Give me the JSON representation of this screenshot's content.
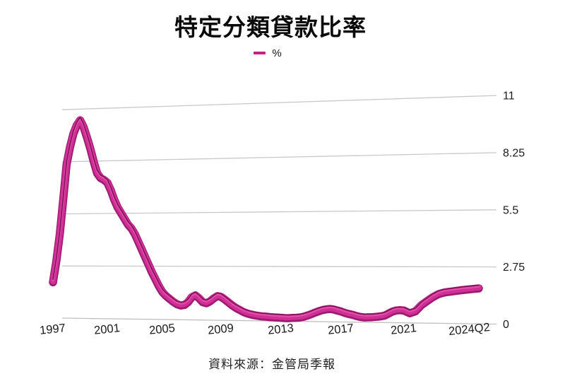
{
  "title": "特定分類貸款比率",
  "legend": {
    "label": "%"
  },
  "source": "資料來源：金管局季報",
  "colors": {
    "background": "#ffffff",
    "gridline": "#c9c9c9",
    "baseline": "#c2c2c2",
    "text": "#1b1b1b",
    "legend_swatch": "#c42287",
    "ribbon_base": "#9b1c6f",
    "ribbon_main": "#d12f97",
    "ribbon_highlight": "#e24ea8",
    "ribbon_edge": "#7e1158"
  },
  "chart_data": {
    "type": "line",
    "style": "3d-ribbon",
    "title": "特定分類貸款比率",
    "series_name": "%",
    "unit": "%",
    "frequency": "quarterly",
    "x_start": "1997Q1",
    "x_end": "2024Q2",
    "x_tick_labels": [
      "1997",
      "2001",
      "2005",
      "2009",
      "2013",
      "2017",
      "2021",
      "2024Q2"
    ],
    "x_tick_indices": [
      0,
      16,
      32,
      48,
      64,
      80,
      96,
      109
    ],
    "y_ticks": [
      0,
      2.75,
      5.5,
      8.25,
      11
    ],
    "y_range": [
      0,
      11
    ],
    "y_axis_side": "right",
    "grid": true,
    "legend_position": "top-center",
    "values": [
      2.08,
      3.2,
      4.6,
      6.4,
      8.3,
      9.2,
      9.9,
      10.35,
      10.61,
      10.25,
      9.7,
      9.1,
      8.4,
      7.8,
      7.55,
      7.45,
      7.3,
      6.9,
      6.4,
      6.0,
      5.7,
      5.4,
      5.1,
      4.9,
      4.6,
      4.2,
      3.8,
      3.4,
      3.0,
      2.6,
      2.25,
      1.9,
      1.6,
      1.4,
      1.25,
      1.1,
      0.98,
      0.92,
      0.95,
      1.1,
      1.35,
      1.45,
      1.3,
      1.1,
      1.05,
      1.15,
      1.3,
      1.42,
      1.38,
      1.25,
      1.1,
      0.95,
      0.82,
      0.72,
      0.62,
      0.55,
      0.5,
      0.46,
      0.43,
      0.41,
      0.4,
      0.38,
      0.37,
      0.36,
      0.35,
      0.34,
      0.34,
      0.35,
      0.36,
      0.38,
      0.42,
      0.48,
      0.55,
      0.63,
      0.7,
      0.76,
      0.8,
      0.82,
      0.8,
      0.75,
      0.7,
      0.63,
      0.58,
      0.54,
      0.48,
      0.44,
      0.42,
      0.43,
      0.44,
      0.46,
      0.48,
      0.52,
      0.62,
      0.72,
      0.78,
      0.8,
      0.78,
      0.65,
      0.75,
      1.05,
      1.25,
      1.45,
      1.6,
      1.68,
      1.72,
      1.76,
      1.8,
      1.83,
      1.86,
      1.89
    ]
  }
}
